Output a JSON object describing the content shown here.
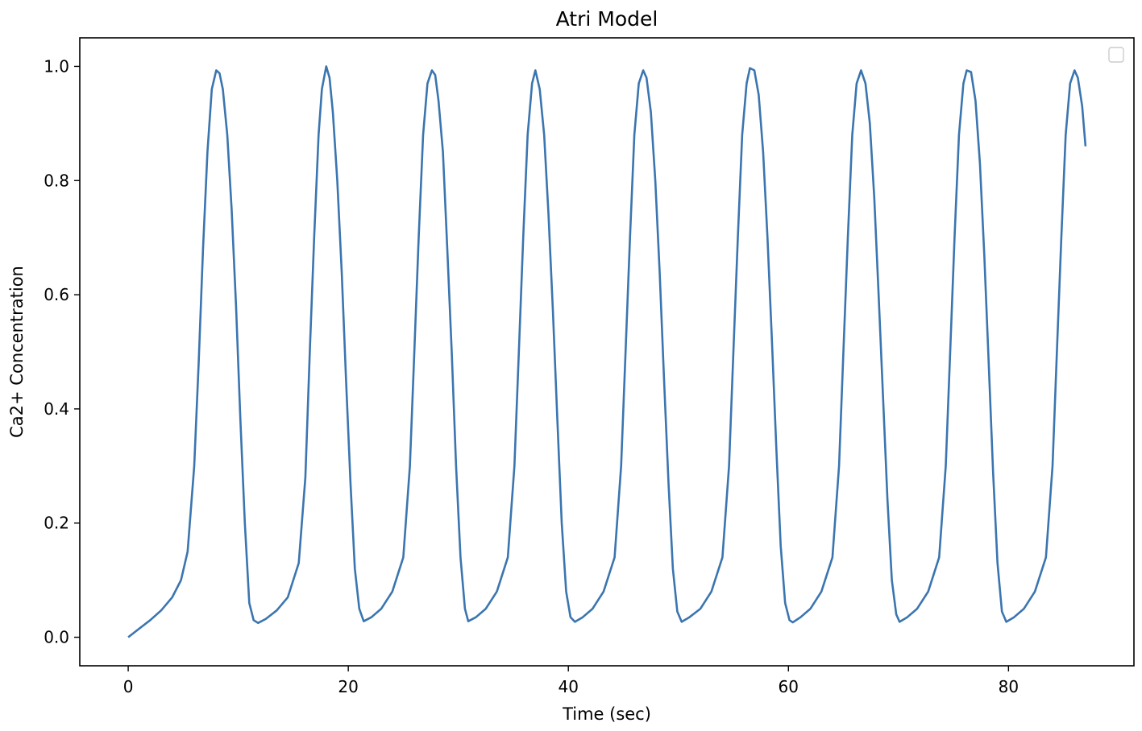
{
  "chart_data": {
    "type": "line",
    "title": "Atri Model",
    "xlabel": "Time (sec)",
    "ylabel": "Ca2+ Concentration",
    "xlim": [
      -4.4,
      91.4
    ],
    "ylim": [
      -0.05,
      1.05
    ],
    "xticks": [
      0,
      20,
      40,
      60,
      80
    ],
    "xtick_labels": [
      "0",
      "20",
      "40",
      "60",
      "80"
    ],
    "yticks": [
      0.0,
      0.2,
      0.4,
      0.6,
      0.8,
      1.0
    ],
    "ytick_labels": [
      "0.0",
      "0.2",
      "0.4",
      "0.6",
      "0.8",
      "1.0"
    ],
    "grid": false,
    "legend": {
      "placement": "top-right",
      "entries": []
    },
    "colors": {
      "series": "#3b75af",
      "axes": "#000000"
    },
    "series": [
      {
        "x": [
          0,
          1,
          2,
          3,
          4,
          4.8,
          5.4,
          6.0,
          6.4,
          6.8,
          7.2,
          7.6,
          8.0,
          8.3,
          8.6,
          9.0,
          9.4,
          9.8,
          10.2,
          10.6,
          11.0,
          11.4,
          11.8,
          12.5,
          13.5,
          14.5,
          15.5,
          16.1,
          16.5,
          16.9,
          17.3,
          17.6,
          18.0,
          18.3,
          18.6,
          19.0,
          19.4,
          19.8,
          20.2,
          20.6,
          21.0,
          21.4,
          22.1,
          23.0,
          24.0,
          25.0,
          25.6,
          26.0,
          26.4,
          26.8,
          27.2,
          27.6,
          27.9,
          28.2,
          28.6,
          29.0,
          29.4,
          29.8,
          30.2,
          30.6,
          30.9,
          31.6,
          32.5,
          33.5,
          34.5,
          35.1,
          35.5,
          35.9,
          36.3,
          36.7,
          37.0,
          37.4,
          37.8,
          38.2,
          38.6,
          39.0,
          39.4,
          39.8,
          40.2,
          40.6,
          41.3,
          42.2,
          43.2,
          44.2,
          44.8,
          45.2,
          45.6,
          46.0,
          46.4,
          46.8,
          47.1,
          47.5,
          47.9,
          48.3,
          48.7,
          49.1,
          49.5,
          49.9,
          50.3,
          51.0,
          52.0,
          53.0,
          54.0,
          54.6,
          55.0,
          55.4,
          55.8,
          56.2,
          56.5,
          56.9,
          57.3,
          57.7,
          58.1,
          58.5,
          58.9,
          59.3,
          59.7,
          60.1,
          60.4,
          61.1,
          62.0,
          63.0,
          64.0,
          64.6,
          65.0,
          65.4,
          65.8,
          66.2,
          66.6,
          67.0,
          67.4,
          67.8,
          68.2,
          68.6,
          69.0,
          69.4,
          69.8,
          70.1,
          70.8,
          71.7,
          72.7,
          73.7,
          74.3,
          74.7,
          75.1,
          75.5,
          75.9,
          76.2,
          76.6,
          77.0,
          77.4,
          77.8,
          78.2,
          78.6,
          79.0,
          79.4,
          79.8,
          80.5,
          81.4,
          82.4,
          83.4,
          84.0,
          84.4,
          84.8,
          85.2,
          85.6,
          86.0,
          86.3,
          86.7,
          87.0
        ],
        "y": [
          0.0,
          0.015,
          0.03,
          0.047,
          0.07,
          0.1,
          0.15,
          0.3,
          0.48,
          0.68,
          0.85,
          0.96,
          0.993,
          0.988,
          0.96,
          0.88,
          0.75,
          0.58,
          0.38,
          0.2,
          0.06,
          0.03,
          0.025,
          0.032,
          0.047,
          0.07,
          0.13,
          0.28,
          0.5,
          0.7,
          0.88,
          0.96,
          1.0,
          0.98,
          0.92,
          0.8,
          0.64,
          0.45,
          0.27,
          0.12,
          0.05,
          0.028,
          0.035,
          0.05,
          0.08,
          0.14,
          0.3,
          0.5,
          0.7,
          0.88,
          0.97,
          0.993,
          0.985,
          0.94,
          0.85,
          0.68,
          0.5,
          0.3,
          0.14,
          0.05,
          0.028,
          0.035,
          0.05,
          0.08,
          0.14,
          0.3,
          0.5,
          0.7,
          0.88,
          0.97,
          0.993,
          0.96,
          0.88,
          0.74,
          0.57,
          0.38,
          0.2,
          0.08,
          0.035,
          0.027,
          0.035,
          0.05,
          0.08,
          0.14,
          0.3,
          0.5,
          0.7,
          0.88,
          0.97,
          0.993,
          0.98,
          0.92,
          0.8,
          0.64,
          0.45,
          0.27,
          0.12,
          0.045,
          0.027,
          0.035,
          0.05,
          0.08,
          0.14,
          0.3,
          0.5,
          0.7,
          0.88,
          0.97,
          0.997,
          0.993,
          0.95,
          0.85,
          0.7,
          0.52,
          0.33,
          0.16,
          0.06,
          0.03,
          0.026,
          0.035,
          0.05,
          0.08,
          0.14,
          0.3,
          0.5,
          0.7,
          0.88,
          0.97,
          0.993,
          0.97,
          0.9,
          0.77,
          0.6,
          0.42,
          0.24,
          0.1,
          0.04,
          0.027,
          0.035,
          0.05,
          0.08,
          0.14,
          0.3,
          0.5,
          0.7,
          0.88,
          0.97,
          0.993,
          0.99,
          0.94,
          0.83,
          0.67,
          0.48,
          0.29,
          0.13,
          0.045,
          0.027,
          0.035,
          0.05,
          0.08,
          0.14,
          0.3,
          0.5,
          0.7,
          0.88,
          0.97,
          0.993,
          0.98,
          0.93,
          0.86
        ]
      }
    ]
  }
}
